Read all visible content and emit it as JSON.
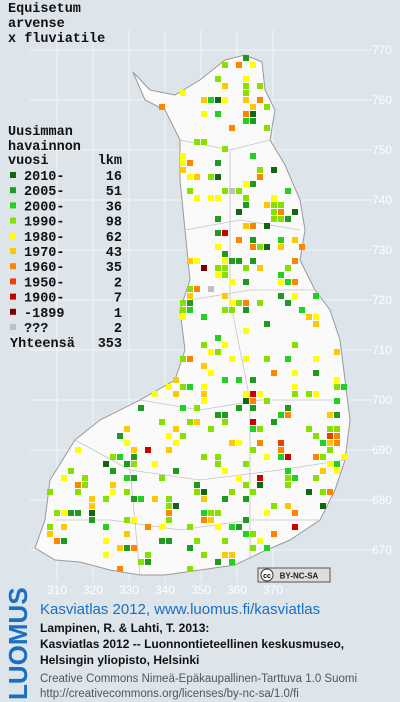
{
  "title": [
    "Equisetum",
    "arvense",
    "x fluviatile"
  ],
  "legend": {
    "heading": [
      "Uusimman",
      "havainnon"
    ],
    "col_period": "vuosi",
    "col_count": "lkm",
    "rows": [
      {
        "label": "2010-",
        "count": 16,
        "color": "#146414"
      },
      {
        "label": "2005-",
        "count": 51,
        "color": "#1e9a1e"
      },
      {
        "label": "2000-",
        "count": 36,
        "color": "#22d022"
      },
      {
        "label": "1990-",
        "count": 98,
        "color": "#88e000"
      },
      {
        "label": "1980-",
        "count": 62,
        "color": "#ffff00"
      },
      {
        "label": "1970-",
        "count": 43,
        "color": "#ffc800"
      },
      {
        "label": "1960-",
        "count": 35,
        "color": "#ff8400"
      },
      {
        "label": "1950-",
        "count": 2,
        "color": "#e84000"
      },
      {
        "label": "1900-",
        "count": 7,
        "color": "#cc0000"
      },
      {
        "label": "-1899",
        "count": 1,
        "color": "#800000"
      },
      {
        "label": "???",
        "count": 2,
        "color": "#c0c0c0"
      }
    ],
    "total_label": "Yhteensä",
    "total": 353
  },
  "map": {
    "xticks": [
      310,
      320,
      330,
      340,
      350,
      360,
      370
    ],
    "yticks": [
      670,
      680,
      690,
      700,
      710,
      720,
      730,
      740,
      750,
      760,
      770
    ]
  },
  "license_badge": {
    "icon": "cc",
    "text": "BY-NC-SA"
  },
  "logo": "LUOMUS",
  "credits": {
    "link": "Kasviatlas 2012, www.luomus.fi/kasviatlas",
    "citation": [
      "Lampinen, R. & Lahti, T. 2013:",
      "Kasviatlas 2012 -- Luonnontieteellinen keskusmuseo,",
      "Helsingin yliopisto, Helsinki"
    ],
    "license": [
      "Creative Commons Nimeä-Epäkaupallinen-Tarttuva 1.0 Suomi",
      "http://creativecommons.org/licenses/by-nc-sa/1.0/fi"
    ]
  }
}
